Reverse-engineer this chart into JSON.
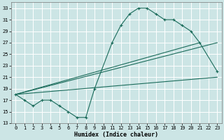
{
  "xlabel": "Humidex (Indice chaleur)",
  "bg_color": "#cce5e5",
  "grid_color": "#ffffff",
  "line_color": "#1a6b5a",
  "xlim": [
    -0.5,
    23.5
  ],
  "ylim": [
    13,
    34
  ],
  "xticks": [
    0,
    1,
    2,
    3,
    4,
    5,
    6,
    7,
    8,
    9,
    10,
    11,
    12,
    13,
    14,
    15,
    16,
    17,
    18,
    19,
    20,
    21,
    22,
    23
  ],
  "yticks": [
    13,
    15,
    17,
    19,
    21,
    23,
    25,
    27,
    29,
    31,
    33
  ],
  "curve_x": [
    0,
    1,
    2,
    3,
    4,
    5,
    6,
    7,
    8,
    9,
    11,
    12,
    13,
    14,
    15,
    16,
    17,
    18,
    19,
    20,
    21,
    23
  ],
  "curve_y": [
    18,
    17,
    16,
    17,
    17,
    16,
    15,
    14,
    14,
    19,
    27,
    30,
    32,
    33,
    33,
    32,
    31,
    31,
    30,
    29,
    27,
    22
  ],
  "trend1_x": [
    0,
    23
  ],
  "trend1_y": [
    18,
    28
  ],
  "trend2_x": [
    0,
    22
  ],
  "trend2_y": [
    18,
    28
  ],
  "trend3_x": [
    0,
    23
  ],
  "trend3_y": [
    18,
    21
  ],
  "xlabel_fontsize": 6.0,
  "tick_fontsize": 5.0
}
